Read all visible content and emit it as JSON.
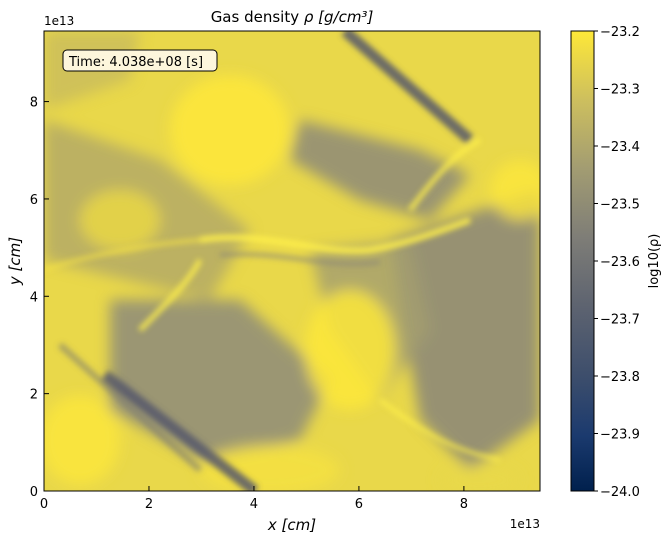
{
  "chart_data": {
    "type": "heatmap",
    "title_prefix": "Gas density ",
    "title_math": "ρ [g/cm³]",
    "xlabel": "x [cm]",
    "ylabel": "y [cm]",
    "x_exponent_label": "1e13",
    "y_exponent_label": "1e13",
    "xlim": [
      0,
      9.45
    ],
    "ylim": [
      0,
      9.45
    ],
    "x_ticks": [
      0,
      2,
      4,
      6,
      8
    ],
    "y_ticks": [
      0,
      2,
      4,
      6,
      8
    ],
    "time_annotation": "Time: 4.038e+08 [s]",
    "colorbar": {
      "label": "log10(ρ)",
      "range": [
        -24.0,
        -23.2
      ],
      "ticks": [
        "−23.2",
        "−23.3",
        "−23.4",
        "−23.5",
        "−23.6",
        "−23.7",
        "−23.8",
        "−23.9",
        "−24.0"
      ],
      "tick_values": [
        -23.2,
        -23.3,
        -23.4,
        -23.5,
        -23.6,
        -23.7,
        -23.8,
        -23.9,
        -24.0
      ],
      "colormap": "cividis",
      "color_low": "#00204d",
      "color_mid": "#7b7b78",
      "color_high": "#fee838"
    },
    "field_description_features": {
      "background_level": -23.25,
      "dark_band_level": -23.68
    }
  }
}
